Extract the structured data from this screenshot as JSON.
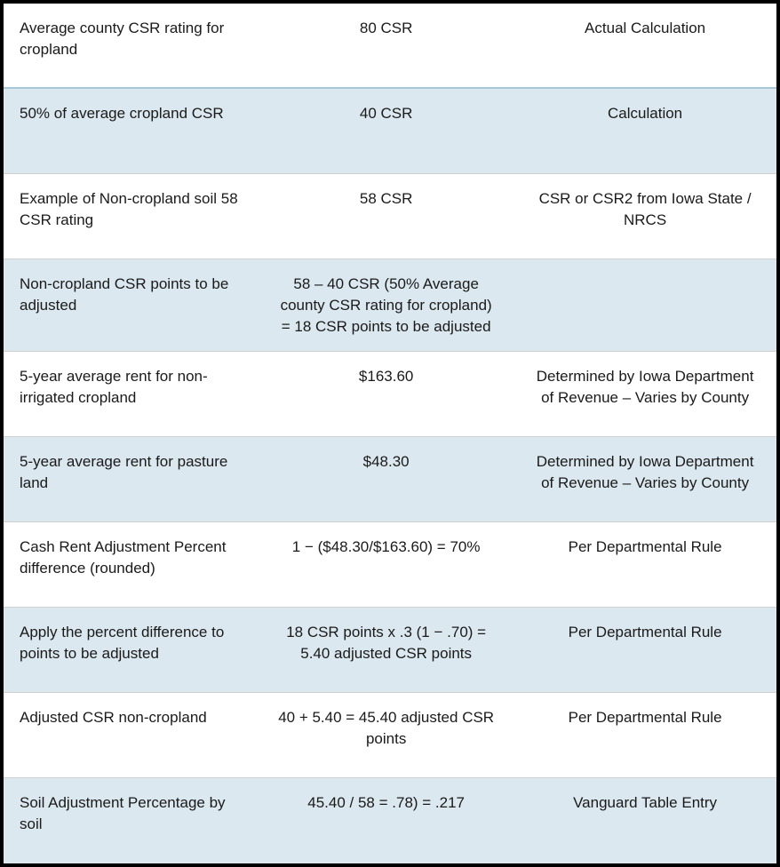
{
  "table": {
    "background_color": "#ffffff",
    "border_color": "#000000",
    "border_width": 4,
    "row_divider_color": "#d0d0d0",
    "shaded_row_color": "#dce8ef",
    "header_divider_color": "#a8c8d8",
    "font_family": "Century Gothic",
    "font_size": 17,
    "text_color": "#1a1a1a",
    "columns": [
      {
        "name": "description",
        "align": "left",
        "width_pct": 33
      },
      {
        "name": "value",
        "align": "center",
        "width_pct": 33
      },
      {
        "name": "source",
        "align": "center",
        "width_pct": 34
      }
    ],
    "rows": [
      {
        "shaded": false,
        "header_divider": true,
        "cells": [
          "Average county CSR rating for cropland",
          "80 CSR",
          "Actual Calculation"
        ]
      },
      {
        "shaded": true,
        "cells": [
          "50% of average cropland CSR",
          "40 CSR",
          "Calculation"
        ]
      },
      {
        "shaded": false,
        "cells": [
          "Example of Non-cropland soil 58 CSR rating",
          "58 CSR",
          "CSR or CSR2 from Iowa State / NRCS"
        ]
      },
      {
        "shaded": true,
        "cells": [
          "Non-cropland CSR points to be adjusted",
          "58 – 40 CSR (50% Average county CSR rating for cropland) = 18 CSR points to be adjusted",
          ""
        ]
      },
      {
        "shaded": false,
        "cells": [
          "5-year average rent for non-irrigated cropland",
          "$163.60",
          "Determined by Iowa Department of Revenue – Varies by County"
        ]
      },
      {
        "shaded": true,
        "cells": [
          "5-year average rent for pasture land",
          "$48.30",
          "Determined by Iowa Department of Revenue – Varies by County"
        ]
      },
      {
        "shaded": false,
        "cells": [
          "Cash Rent Adjustment Percent difference (rounded)",
          "1 − ($48.30/$163.60) = 70%",
          "Per Departmental Rule"
        ]
      },
      {
        "shaded": true,
        "cells": [
          "Apply the percent difference to points to be adjusted",
          "18 CSR points x .3 (1 − .70) = 5.40 adjusted CSR points",
          "Per Departmental Rule"
        ]
      },
      {
        "shaded": false,
        "cells": [
          "Adjusted CSR non-cropland",
          "40 + 5.40 = 45.40 adjusted CSR points",
          "Per Departmental Rule"
        ]
      },
      {
        "shaded": true,
        "cells": [
          "Soil Adjustment Percentage by soil",
          "45.40 / 58 = .78) = .217",
          "Vanguard Table Entry"
        ]
      }
    ]
  }
}
